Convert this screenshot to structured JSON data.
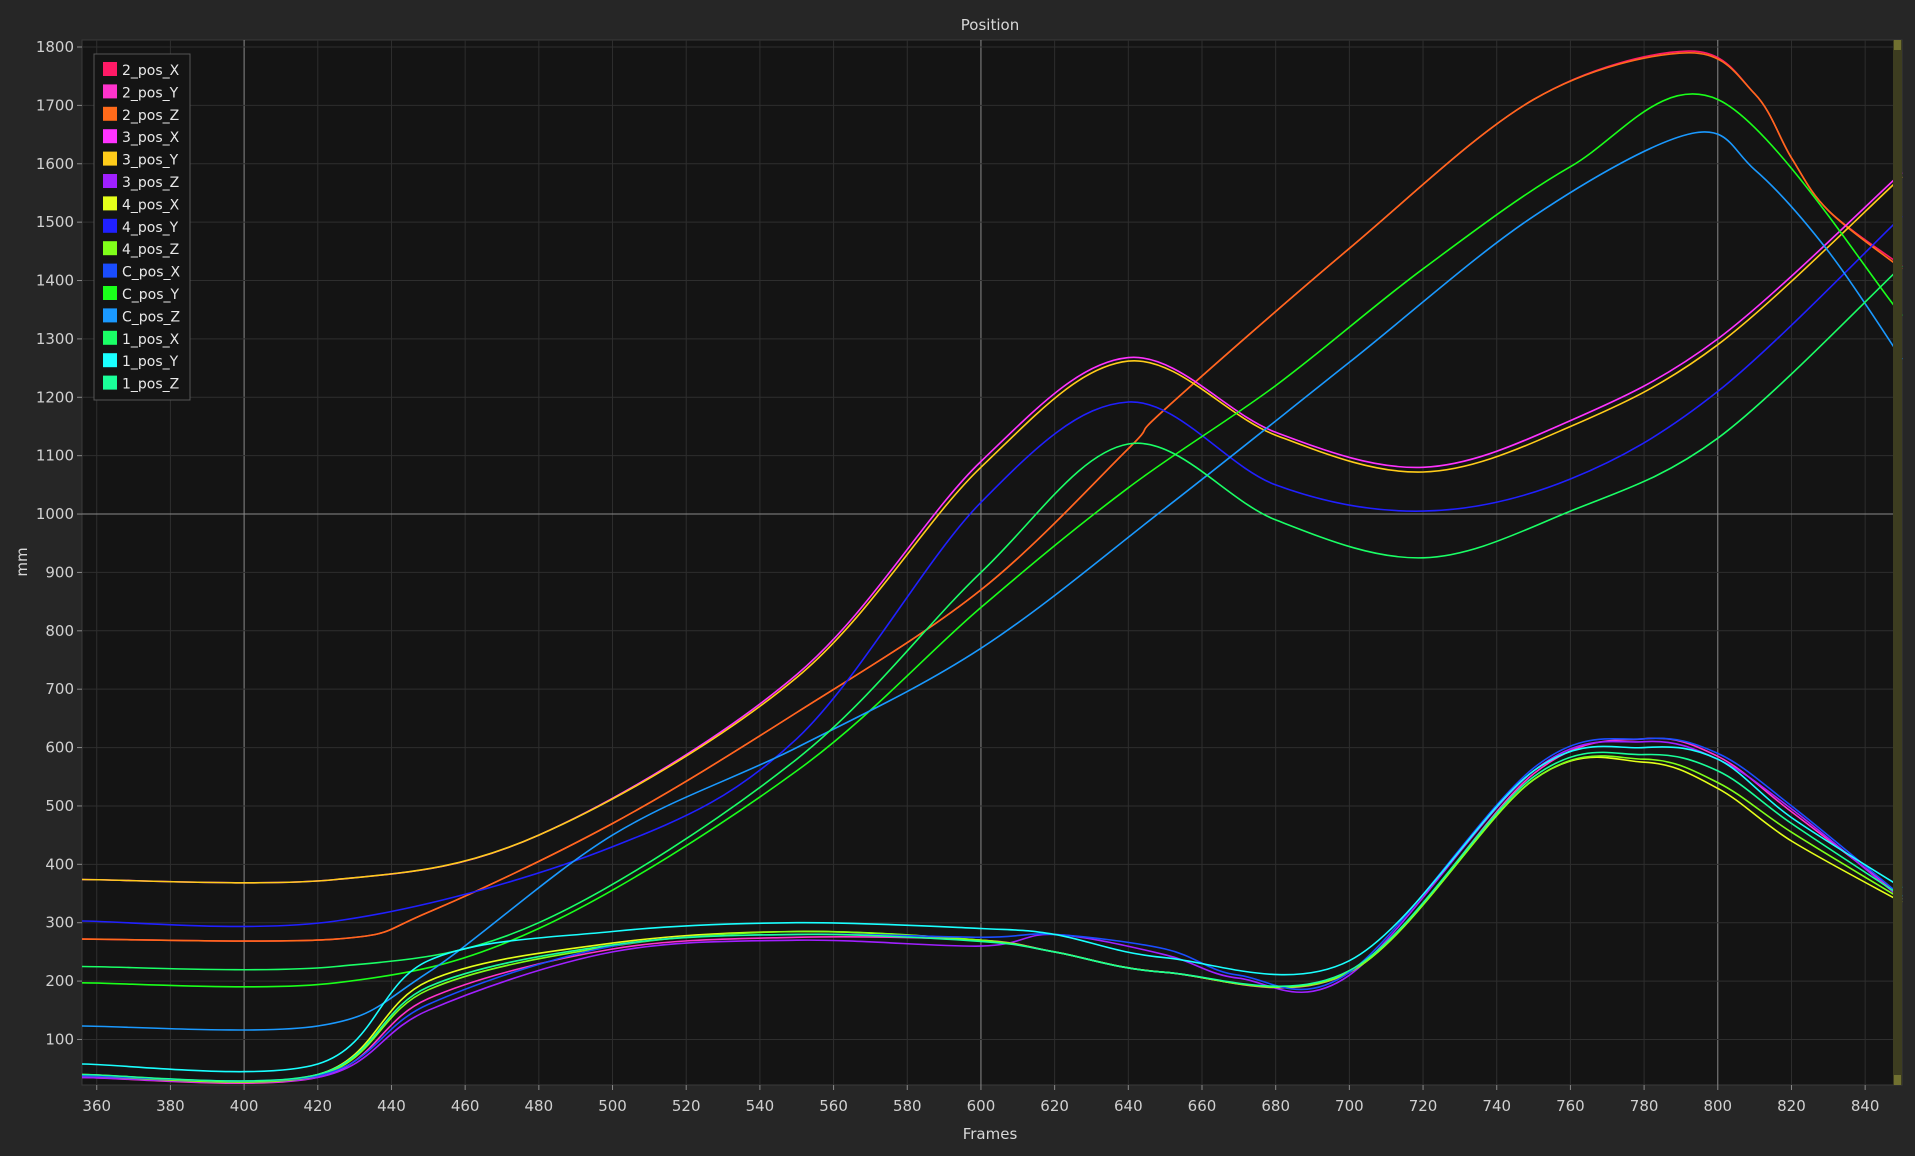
{
  "chart_data": {
    "type": "line",
    "title": "Position",
    "xlabel": "Frames",
    "ylabel": "mm",
    "xlim": [
      356,
      850
    ],
    "ylim": [
      22,
      1812
    ],
    "xticks": [
      360,
      380,
      400,
      420,
      440,
      460,
      480,
      500,
      520,
      540,
      560,
      580,
      600,
      620,
      640,
      660,
      680,
      700,
      720,
      740,
      760,
      780,
      800,
      820,
      840
    ],
    "yticks": [
      100,
      200,
      300,
      400,
      500,
      600,
      700,
      800,
      900,
      1000,
      1100,
      1200,
      1300,
      1400,
      1500,
      1600,
      1700,
      1800
    ],
    "major_x": [
      400,
      600,
      800
    ],
    "major_y": [
      1000
    ],
    "grid": true,
    "legend_position": "top-left",
    "series": [
      {
        "name": "2_pos_X",
        "color": "#ff1a66",
        "x": [
          356,
          425,
          450,
          500,
          550,
          600,
          640,
          650,
          700,
          750,
          792,
          810,
          820,
          830,
          850
        ],
        "y": [
          272,
          272,
          318,
          470,
          660,
          870,
          1112,
          1180,
          1455,
          1710,
          1793,
          1720,
          1610,
          1520,
          1425
        ]
      },
      {
        "name": "2_pos_Y",
        "color": "#ff33cc",
        "x": [
          356,
          420,
          450,
          500,
          550,
          600,
          620,
          650,
          700,
          750,
          780,
          800,
          820,
          850
        ],
        "y": [
          35,
          35,
          170,
          255,
          275,
          270,
          250,
          215,
          215,
          555,
          615,
          585,
          490,
          345
        ]
      },
      {
        "name": "2_pos_Z",
        "color": "#ff6a1a",
        "x": [
          356,
          425,
          450,
          500,
          550,
          600,
          640,
          650,
          700,
          750,
          792,
          810,
          820,
          830,
          850
        ],
        "y": [
          272,
          272,
          318,
          470,
          660,
          870,
          1112,
          1180,
          1455,
          1710,
          1790,
          1720,
          1610,
          1520,
          1420
        ]
      },
      {
        "name": "3_pos_X",
        "color": "#ff33ff",
        "x": [
          356,
          425,
          480,
          550,
          600,
          640,
          680,
          720,
          760,
          800,
          850
        ],
        "y": [
          374,
          374,
          450,
          725,
          1090,
          1268,
          1140,
          1080,
          1160,
          1300,
          1585
        ]
      },
      {
        "name": "3_pos_Y",
        "color": "#ffcc1a",
        "x": [
          356,
          425,
          480,
          550,
          600,
          640,
          680,
          720,
          760,
          800,
          850
        ],
        "y": [
          374,
          374,
          450,
          720,
          1080,
          1262,
          1135,
          1072,
          1150,
          1290,
          1578
        ]
      },
      {
        "name": "3_pos_Z",
        "color": "#a020ff",
        "x": [
          356,
          420,
          450,
          500,
          550,
          600,
          620,
          650,
          670,
          700,
          750,
          780,
          800,
          820,
          850
        ],
        "y": [
          35,
          35,
          150,
          250,
          270,
          260,
          280,
          245,
          205,
          210,
          560,
          610,
          580,
          495,
          340
        ]
      },
      {
        "name": "4_pos_X",
        "color": "#e5ff1a",
        "x": [
          356,
          420,
          450,
          500,
          550,
          600,
          620,
          650,
          700,
          750,
          780,
          800,
          820,
          850
        ],
        "y": [
          40,
          40,
          200,
          265,
          285,
          270,
          250,
          215,
          215,
          545,
          575,
          530,
          440,
          335
        ]
      },
      {
        "name": "4_pos_Y",
        "color": "#2020ff",
        "x": [
          356,
          425,
          500,
          550,
          600,
          640,
          680,
          720,
          760,
          800,
          850
        ],
        "y": [
          303,
          303,
          430,
          615,
          1020,
          1192,
          1050,
          1005,
          1060,
          1210,
          1510
        ]
      },
      {
        "name": "4_pos_Z",
        "color": "#80ff1a",
        "x": [
          356,
          420,
          450,
          500,
          550,
          600,
          620,
          650,
          700,
          750,
          780,
          800,
          820,
          850
        ],
        "y": [
          38,
          38,
          185,
          260,
          285,
          270,
          250,
          215,
          215,
          545,
          580,
          540,
          455,
          340
        ]
      },
      {
        "name": "C_pos_X",
        "color": "#1a4dff",
        "x": [
          356,
          420,
          450,
          500,
          550,
          600,
          620,
          650,
          670,
          700,
          750,
          780,
          800,
          820,
          850
        ],
        "y": [
          38,
          38,
          160,
          260,
          280,
          275,
          280,
          255,
          210,
          215,
          565,
          615,
          590,
          500,
          345
        ]
      },
      {
        "name": "C_pos_Y",
        "color": "#1aff1a",
        "x": [
          356,
          425,
          480,
          550,
          600,
          640,
          680,
          720,
          760,
          800,
          850
        ],
        "y": [
          197,
          197,
          290,
          560,
          840,
          1045,
          1220,
          1420,
          1595,
          1710,
          1340
        ]
      },
      {
        "name": "C_pos_Z",
        "color": "#1a99ff",
        "x": [
          356,
          420,
          450,
          500,
          550,
          600,
          650,
          700,
          750,
          793,
          810,
          830,
          850
        ],
        "y": [
          123,
          123,
          215,
          450,
          600,
          770,
          1010,
          1260,
          1510,
          1652,
          1590,
          1450,
          1265
        ]
      },
      {
        "name": "1_pos_X",
        "color": "#1aff66",
        "x": [
          356,
          425,
          480,
          550,
          600,
          640,
          680,
          720,
          760,
          800,
          850
        ],
        "y": [
          225,
          225,
          300,
          580,
          900,
          1120,
          990,
          925,
          1005,
          1130,
          1425
        ]
      },
      {
        "name": "1_pos_Y",
        "color": "#1affff",
        "x": [
          356,
          420,
          450,
          500,
          550,
          600,
          620,
          650,
          700,
          750,
          780,
          800,
          820,
          850
        ],
        "y": [
          58,
          58,
          235,
          285,
          300,
          290,
          280,
          240,
          235,
          560,
          600,
          580,
          480,
          360
        ]
      },
      {
        "name": "1_pos_Z",
        "color": "#1aff99",
        "x": [
          356,
          420,
          450,
          500,
          550,
          600,
          620,
          650,
          700,
          750,
          780,
          800,
          820,
          850
        ],
        "y": [
          40,
          40,
          190,
          262,
          280,
          268,
          250,
          215,
          218,
          550,
          588,
          560,
          470,
          345
        ]
      }
    ]
  }
}
